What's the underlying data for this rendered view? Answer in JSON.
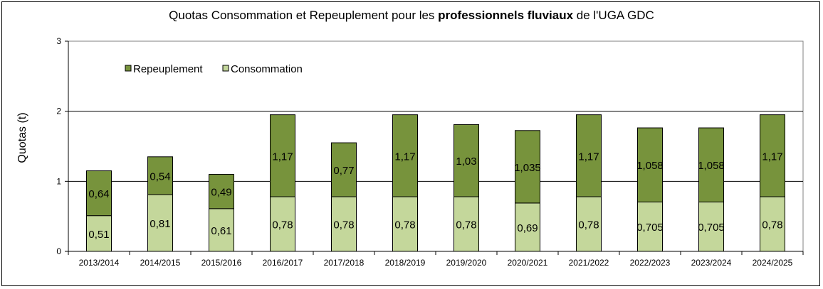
{
  "chart_data": {
    "type": "bar",
    "stacked": true,
    "title_prefix": "Quotas Consommation et Repeuplement  pour les ",
    "title_bold": "professionnels fluviaux",
    "title_suffix": " de l'UGA GDC",
    "xlabel": "",
    "ylabel": "Quotas (t)",
    "ylim": [
      0,
      3
    ],
    "yticks": [
      "0",
      "1",
      "2",
      "3"
    ],
    "grid": true,
    "legend_position": "top-left",
    "categories": [
      "2013/2014",
      "2014/2015",
      "2015/2016",
      "2016/2017",
      "2017/2018",
      "2018/2019",
      "2019/2020",
      "2020/2021",
      "2021/2022",
      "2022/2023",
      "2023/2024",
      "2024/2025"
    ],
    "series": [
      {
        "name": "Consommation",
        "color": "#c4d79b",
        "values": [
          0.51,
          0.81,
          0.61,
          0.78,
          0.78,
          0.78,
          0.78,
          0.69,
          0.78,
          0.705,
          0.705,
          0.78
        ],
        "labels": [
          "0,51",
          "0,81",
          "0,61",
          "0,78",
          "0,78",
          "0,78",
          "0,78",
          "0,69",
          "0,78",
          "0,705",
          "0,705",
          "0,78"
        ]
      },
      {
        "name": "Repeuplement",
        "color": "#77933c",
        "values": [
          0.64,
          0.54,
          0.49,
          1.17,
          0.77,
          1.17,
          1.03,
          1.035,
          1.17,
          1.058,
          1.058,
          1.17
        ],
        "labels": [
          "0,64",
          "0,54",
          "0,49",
          "1,17",
          "0,77",
          "1,17",
          "1,03",
          "1,035",
          "1,17",
          "1,058",
          "1,058",
          "1,17"
        ]
      }
    ]
  }
}
